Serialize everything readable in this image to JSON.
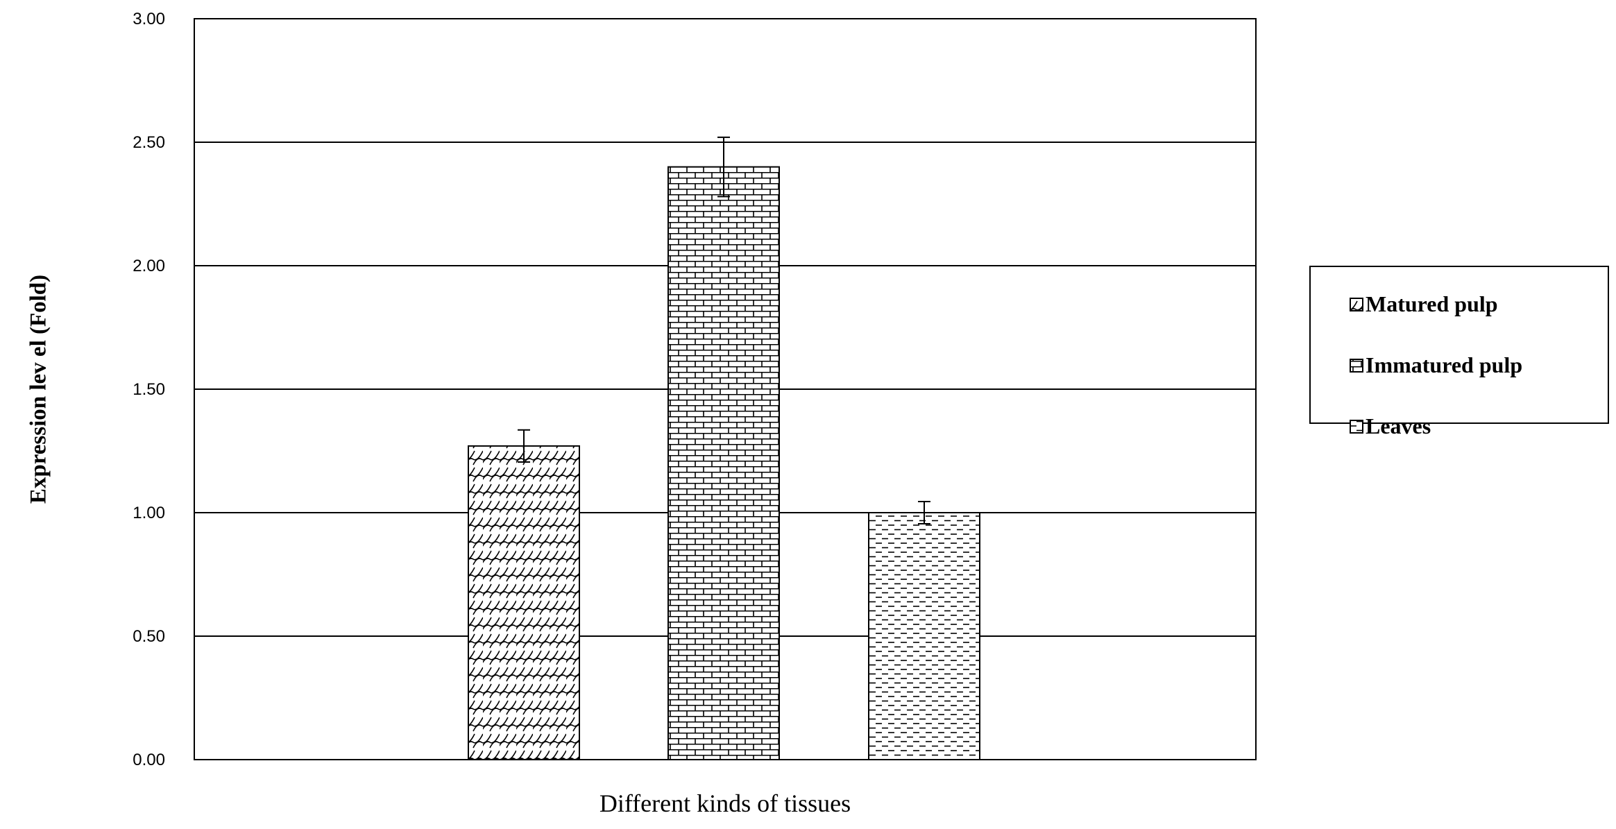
{
  "chart_data": {
    "type": "bar",
    "title": "",
    "xlabel": "Different kinds of tissues",
    "ylabel": "Expression lev el (Fold)",
    "ylim": [
      0,
      3
    ],
    "y_ticks": [
      "0.00",
      "0.50",
      "1.00",
      "1.50",
      "2.00",
      "2.50",
      "3.00"
    ],
    "grid": true,
    "legend_position": "right",
    "series": [
      {
        "name": "Matured pulp",
        "value": 1.27,
        "error": 0.065,
        "pattern": "wave"
      },
      {
        "name": "Immatured pulp",
        "value": 2.4,
        "error": 0.12,
        "pattern": "brick"
      },
      {
        "name": "Leaves",
        "value": 1.0,
        "error": 0.045,
        "pattern": "dash"
      }
    ]
  }
}
